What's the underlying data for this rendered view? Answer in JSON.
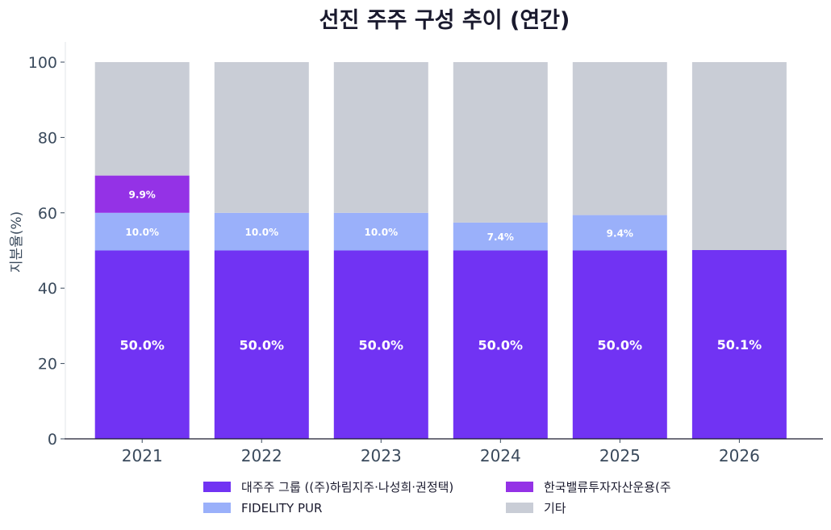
{
  "chart_data": {
    "type": "bar",
    "stacked": true,
    "title": "선진 주주 구성 추이 (연간)",
    "xlabel": "",
    "ylabel": "지분율(%)",
    "ylim": [
      0,
      100
    ],
    "yticks": [
      0,
      20,
      40,
      60,
      80,
      100
    ],
    "categories": [
      "2021",
      "2022",
      "2023",
      "2024",
      "2025",
      "2026"
    ],
    "grid": false,
    "legend_position": "bottom",
    "series": [
      {
        "name": "대주주 그룹 ((주)하림지주·나성희·권정택)",
        "color": "#7133f3",
        "values": [
          50.0,
          50.0,
          50.0,
          50.0,
          50.0,
          50.1
        ],
        "labels": [
          "50.0%",
          "50.0%",
          "50.0%",
          "50.0%",
          "50.0%",
          "50.1%"
        ]
      },
      {
        "name": "FIDELITY PUR",
        "color": "#9ab0fa",
        "values": [
          10.0,
          10.0,
          10.0,
          7.4,
          9.4,
          0
        ],
        "labels": [
          "10.0%",
          "10.0%",
          "10.0%",
          "7.4%",
          "9.4%",
          ""
        ]
      },
      {
        "name": "한국밸류투자자산운용(주",
        "color": "#9432e6",
        "values": [
          9.9,
          0,
          0,
          0,
          0,
          0
        ],
        "labels": [
          "9.9%",
          "",
          "",
          "",
          "",
          ""
        ]
      },
      {
        "name": "기타",
        "color": "#c9cdd6",
        "values": [
          30.1,
          40.0,
          40.0,
          42.6,
          40.6,
          49.9
        ],
        "labels": [
          "",
          "",
          "",
          "",
          "",
          ""
        ]
      }
    ]
  }
}
